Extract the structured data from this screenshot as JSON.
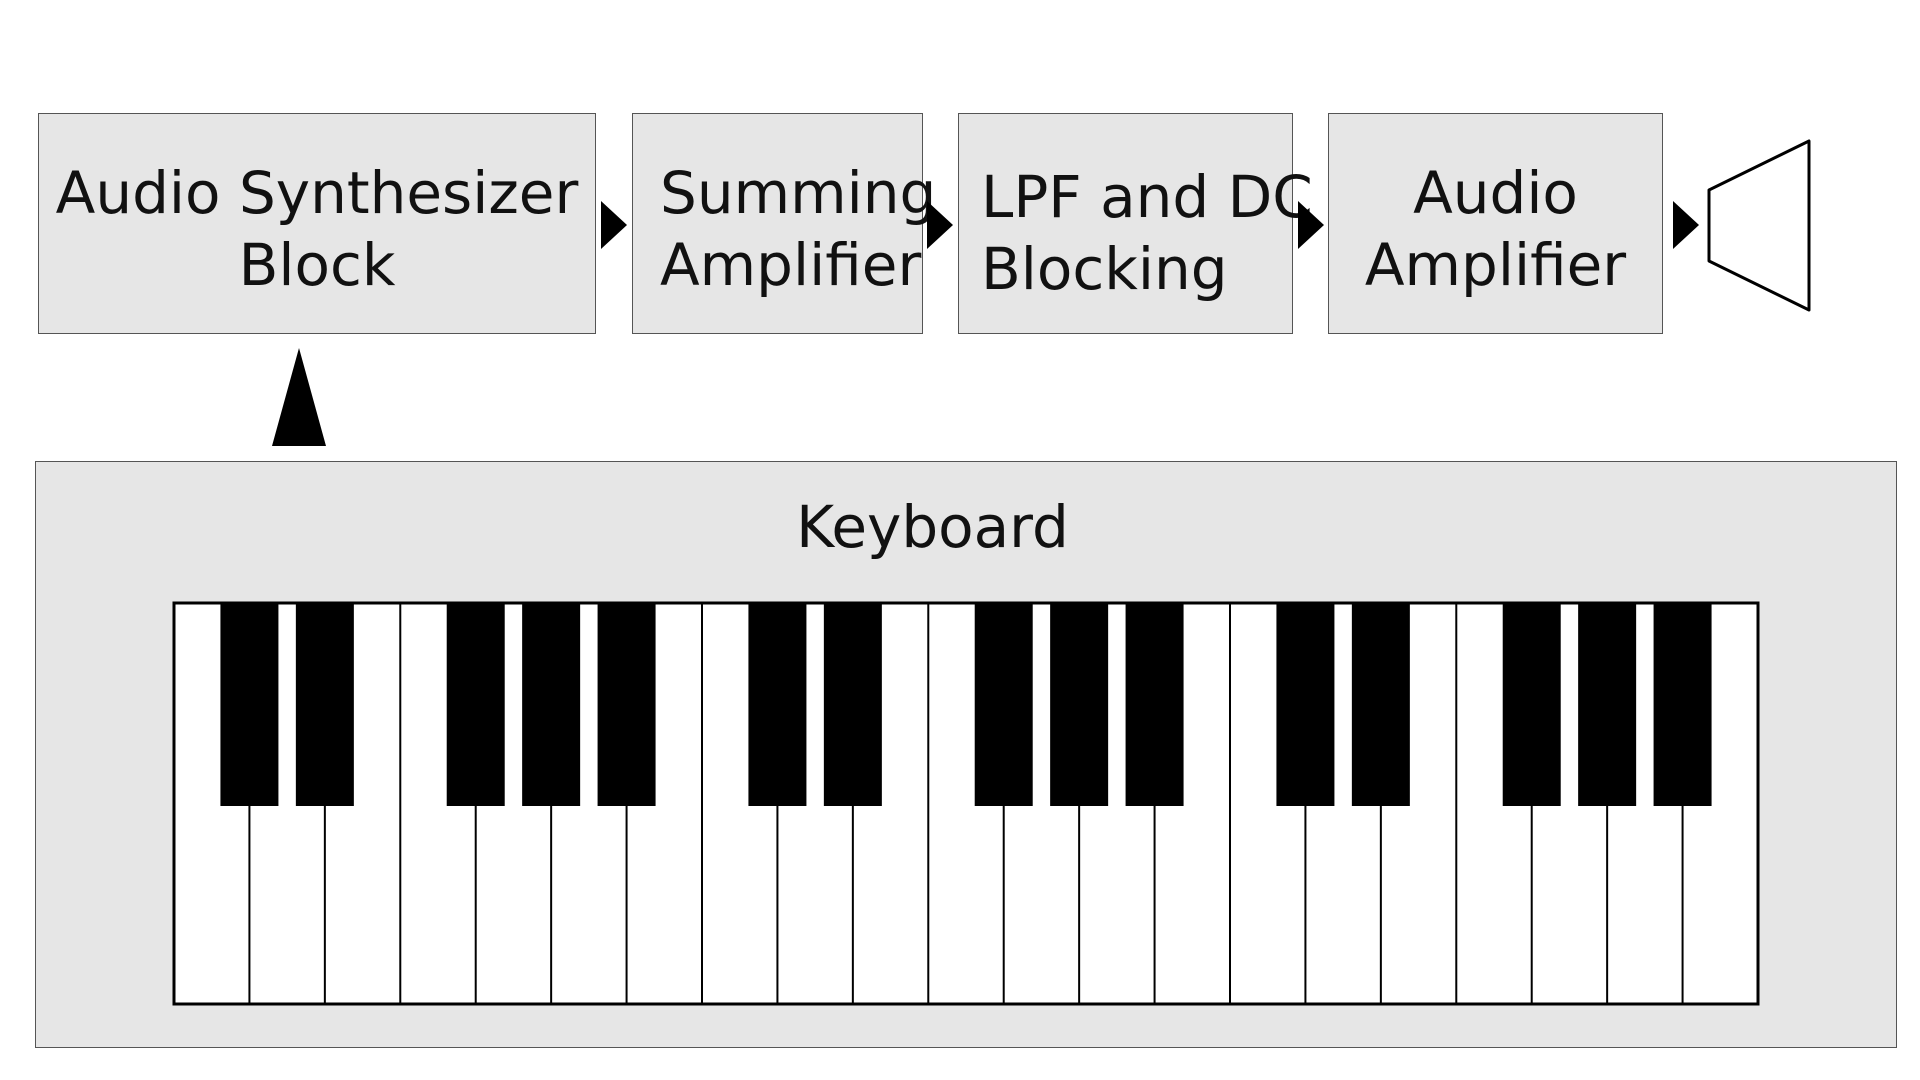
{
  "diagram": {
    "blocks": [
      {
        "id": "synth",
        "lines": [
          "Audio Synthesizer",
          "Block"
        ]
      },
      {
        "id": "summing",
        "lines": [
          "Summing",
          "Amplifier"
        ]
      },
      {
        "id": "lpf",
        "lines": [
          "LPF and DC",
          "Blocking"
        ]
      },
      {
        "id": "amp",
        "lines": [
          "Audio",
          "Amplifier"
        ]
      }
    ],
    "keyboard": {
      "title": "Keyboard",
      "white_key_count": 21,
      "octaves": 3
    },
    "output": "speaker-icon",
    "colors": {
      "block_fill": "#e6e6e6",
      "block_border": "#555555",
      "arrow": "#000000",
      "white_key": "#ffffff",
      "black_key": "#000000"
    }
  }
}
